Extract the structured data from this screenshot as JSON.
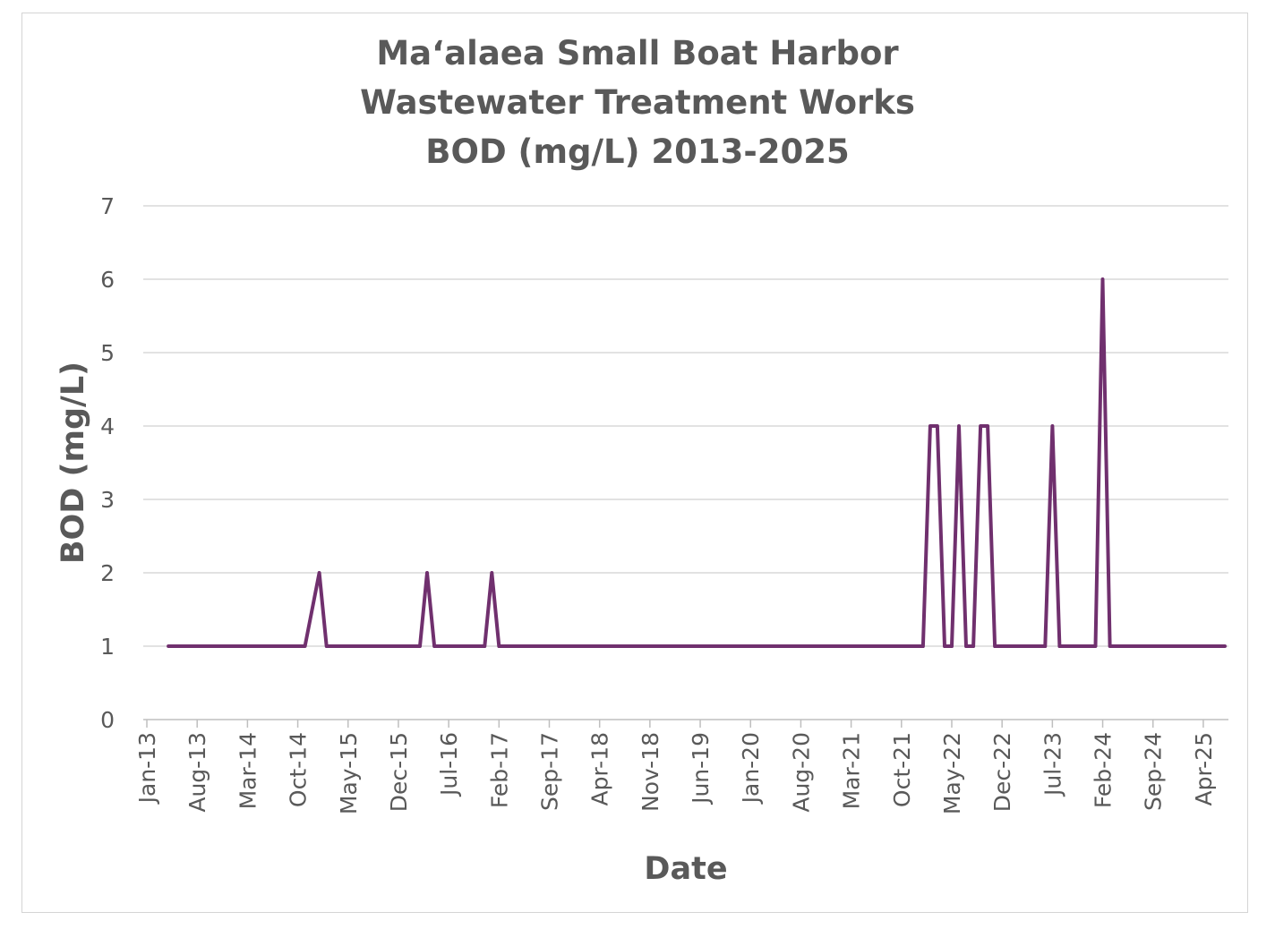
{
  "chart_data": {
    "type": "line",
    "title_lines": [
      "Maʻalaea Small Boat Harbor",
      "Wastewater Treatment Works",
      "BOD (mg/L) 2013-2025"
    ],
    "xlabel": "Date",
    "ylabel": "BOD (mg/L)",
    "ylim": [
      0,
      7
    ],
    "yticks": [
      "0",
      "1",
      "2",
      "3",
      "4",
      "5",
      "6",
      "7"
    ],
    "xticks": [
      "Jan-13",
      "Aug-13",
      "Mar-14",
      "Oct-14",
      "May-15",
      "Dec-15",
      "Jul-16",
      "Feb-17",
      "Sep-17",
      "Apr-18",
      "Nov-18",
      "Jun-19",
      "Jan-20",
      "Aug-20",
      "Mar-21",
      "Oct-21",
      "May-22",
      "Dec-22",
      "Jul-23",
      "Feb-24",
      "Sep-24",
      "Apr-25"
    ],
    "grid": true,
    "legend": "none",
    "series": [
      {
        "color": "#70306e",
        "points": [
          [
            "Apr-13",
            1
          ],
          [
            "Nov-14",
            1
          ],
          [
            "Jan-15",
            2
          ],
          [
            "Feb-15",
            1
          ],
          [
            "Mar-16",
            1
          ],
          [
            "Apr-16",
            2
          ],
          [
            "May-16",
            1
          ],
          [
            "Dec-16",
            1
          ],
          [
            "Jan-17",
            2
          ],
          [
            "Feb-17",
            1
          ],
          [
            "Jan-22",
            1
          ],
          [
            "Feb-22",
            4
          ],
          [
            "Mar-22",
            4
          ],
          [
            "Apr-22",
            1
          ],
          [
            "May-22",
            1
          ],
          [
            "Jun-22",
            4
          ],
          [
            "Jul-22",
            1
          ],
          [
            "Aug-22",
            1
          ],
          [
            "Sep-22",
            4
          ],
          [
            "Oct-22",
            4
          ],
          [
            "Nov-22",
            1
          ],
          [
            "Jun-23",
            1
          ],
          [
            "Jul-23",
            4
          ],
          [
            "Aug-23",
            1
          ],
          [
            "Jan-24",
            1
          ],
          [
            "Feb-24",
            6
          ],
          [
            "Mar-24",
            1
          ],
          [
            "Jul-25",
            1
          ]
        ]
      }
    ]
  }
}
